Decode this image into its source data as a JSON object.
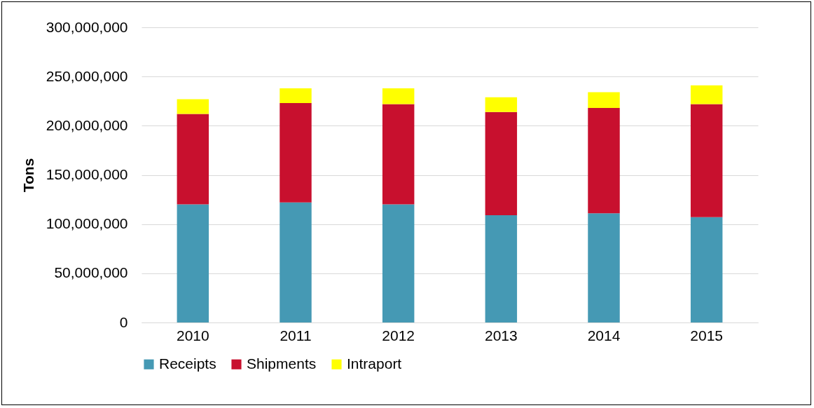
{
  "chart_data": {
    "type": "bar",
    "stacked": true,
    "ylabel": "Tons",
    "categories": [
      "2010",
      "2011",
      "2012",
      "2013",
      "2014",
      "2015"
    ],
    "series": [
      {
        "name": "Receipts",
        "color": "#4599b4",
        "values": [
          120000000,
          122000000,
          120000000,
          109000000,
          111000000,
          107000000
        ]
      },
      {
        "name": "Shipments",
        "color": "#c8102e",
        "values": [
          92000000,
          101000000,
          102000000,
          105000000,
          107000000,
          115000000
        ]
      },
      {
        "name": "Intraport",
        "color": "#ffff00",
        "values": [
          15000000,
          15000000,
          16000000,
          15000000,
          16000000,
          19000000
        ]
      }
    ],
    "ylim": [
      0,
      300000000
    ],
    "yticks": [
      0,
      {
        "value": 50000000,
        "label": "50,000,000"
      },
      {
        "value": 100000000,
        "label": "100,000,000"
      },
      {
        "value": 150000000,
        "label": "150,000,000"
      },
      {
        "value": 200000000,
        "label": "200,000,000"
      },
      {
        "value": 250000000,
        "label": "250,000,000"
      },
      {
        "value": 300000000,
        "label": "300,000,000"
      }
    ],
    "grid": "y",
    "legend": "bottom"
  }
}
